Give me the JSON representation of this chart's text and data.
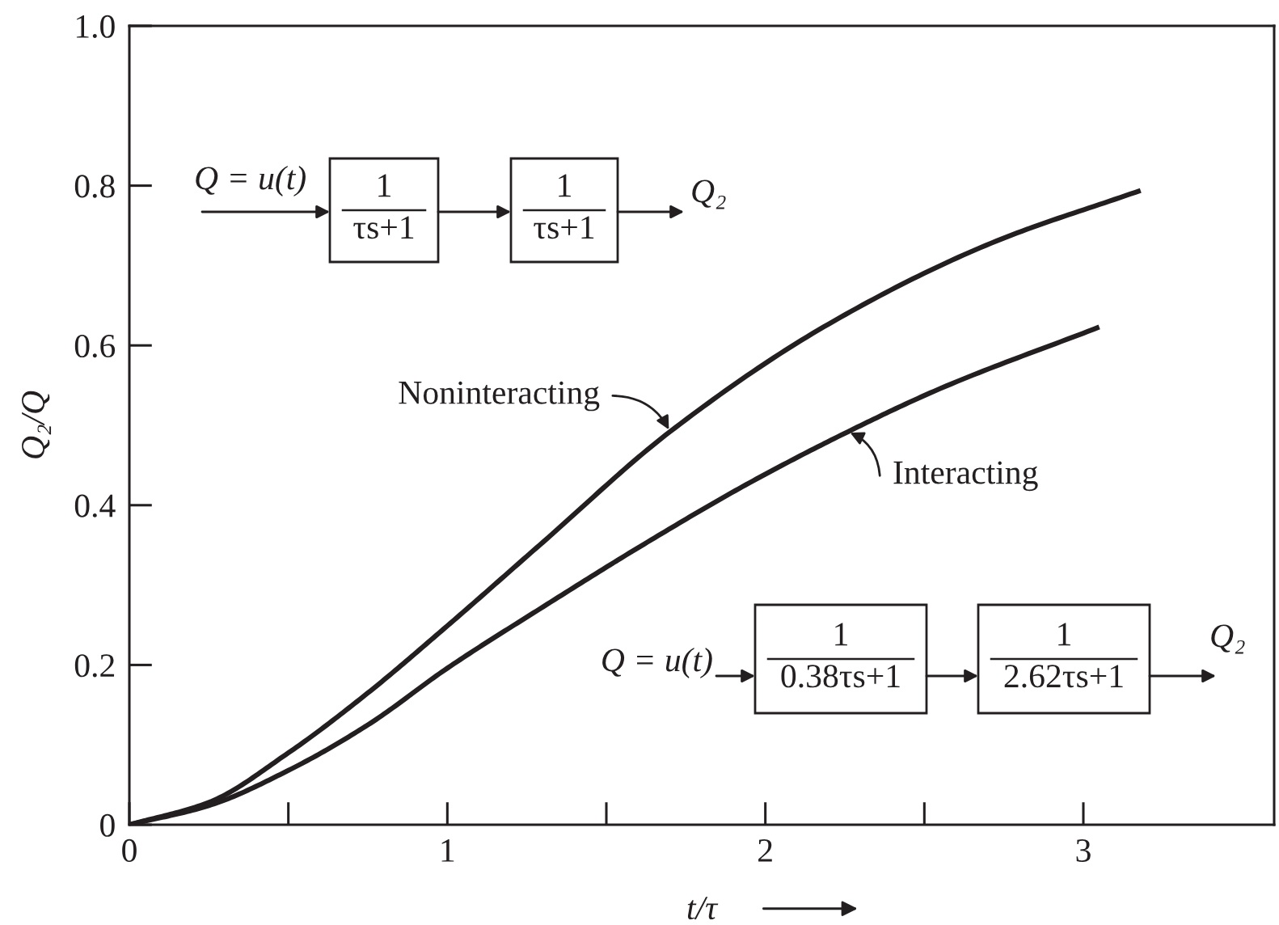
{
  "chart_data": {
    "type": "line",
    "xlabel": "t/τ",
    "ylabel": "Q₂/Q",
    "xlim": [
      0,
      3.6
    ],
    "xticks": [
      0,
      {
        "value": 0.5,
        "label": null
      },
      1,
      {
        "value": 1.5,
        "label": null
      },
      2,
      {
        "value": 2.5,
        "label": null
      },
      3
    ],
    "ylim": [
      0,
      1.0
    ],
    "yticks": [
      0,
      0.2,
      0.4,
      0.6,
      0.8,
      {
        "value": 1.0,
        "label": "1.0"
      }
    ],
    "grid": false,
    "marker": "none",
    "line_style": "solid",
    "series": [
      {
        "name": "Noninteracting",
        "color": "#231f20",
        "x": [
          0,
          0.25,
          0.5,
          0.75,
          1.0,
          1.29,
          1.7,
          2.2,
          2.71,
          3.18
        ],
        "values": [
          0,
          0.028,
          0.09,
          0.165,
          0.249,
          0.35,
          0.492,
          0.627,
          0.728,
          0.794
        ]
      },
      {
        "name": "Interacting",
        "color": "#231f20",
        "x": [
          0,
          0.25,
          0.5,
          0.75,
          1.0,
          1.29,
          1.63,
          1.95,
          2.26,
          2.55,
          3.05
        ],
        "values": [
          0,
          0.024,
          0.068,
          0.125,
          0.196,
          0.27,
          0.354,
          0.428,
          0.492,
          0.546,
          0.623
        ]
      }
    ],
    "annotations": [
      "Q = u(t)",
      "1",
      "τs+1",
      "1",
      "τs+1",
      "Q₂",
      "Q = u(t)",
      "1",
      "0.38τs+1",
      "1",
      "2.62τs+1",
      "Q₂"
    ]
  }
}
